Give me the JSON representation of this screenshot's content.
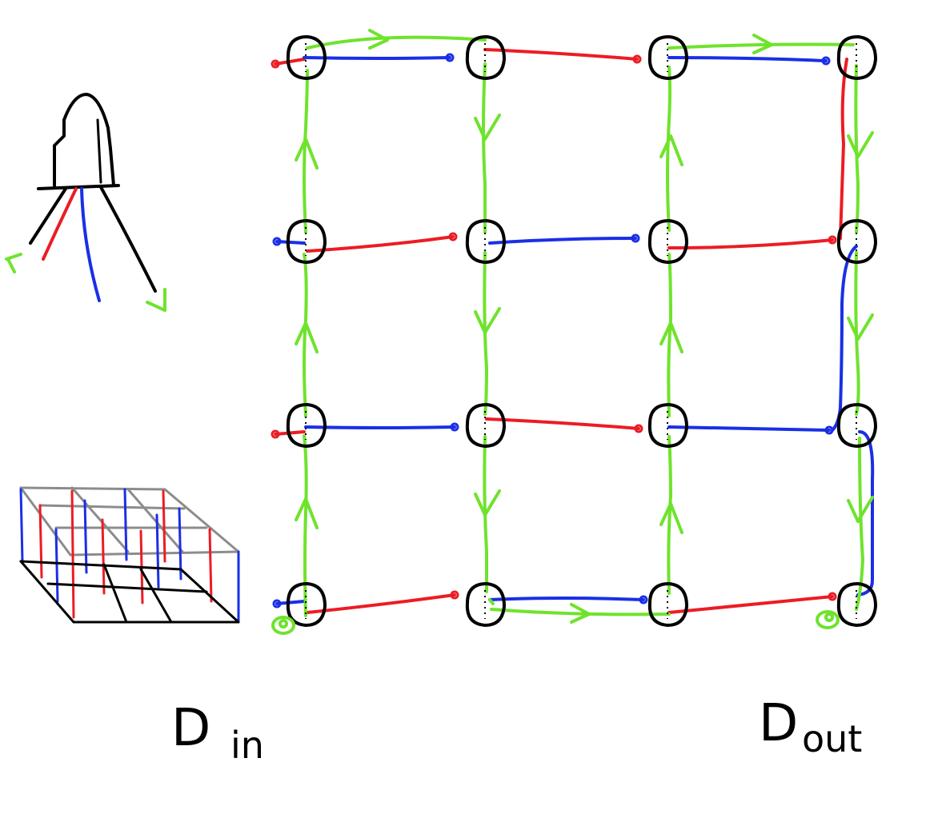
{
  "labels": {
    "input_main": "D",
    "input_sub": "in",
    "output_main": "D",
    "output_sub": "out"
  },
  "colors": {
    "data_wire": "#6fe32c",
    "power_wire": "#ec1c24",
    "ground_wire": "#1a2fe6",
    "outline": "#000000",
    "frame": "#8c8c8c"
  },
  "grid": {
    "rows": 4,
    "cols": 4
  },
  "data_path_order": [
    "r3c0",
    "r2c0",
    "r1c0",
    "r0c0",
    "r0c1",
    "r1c1",
    "r2c1",
    "r3c1",
    "r3c2",
    "r2c2",
    "r1c2",
    "r0c2",
    "r0c3",
    "r1c3",
    "r2c3",
    "r3c3"
  ],
  "icons": {
    "led": "led-component-icon",
    "box": "3d-frame-icon",
    "node": "led-node-icon"
  }
}
